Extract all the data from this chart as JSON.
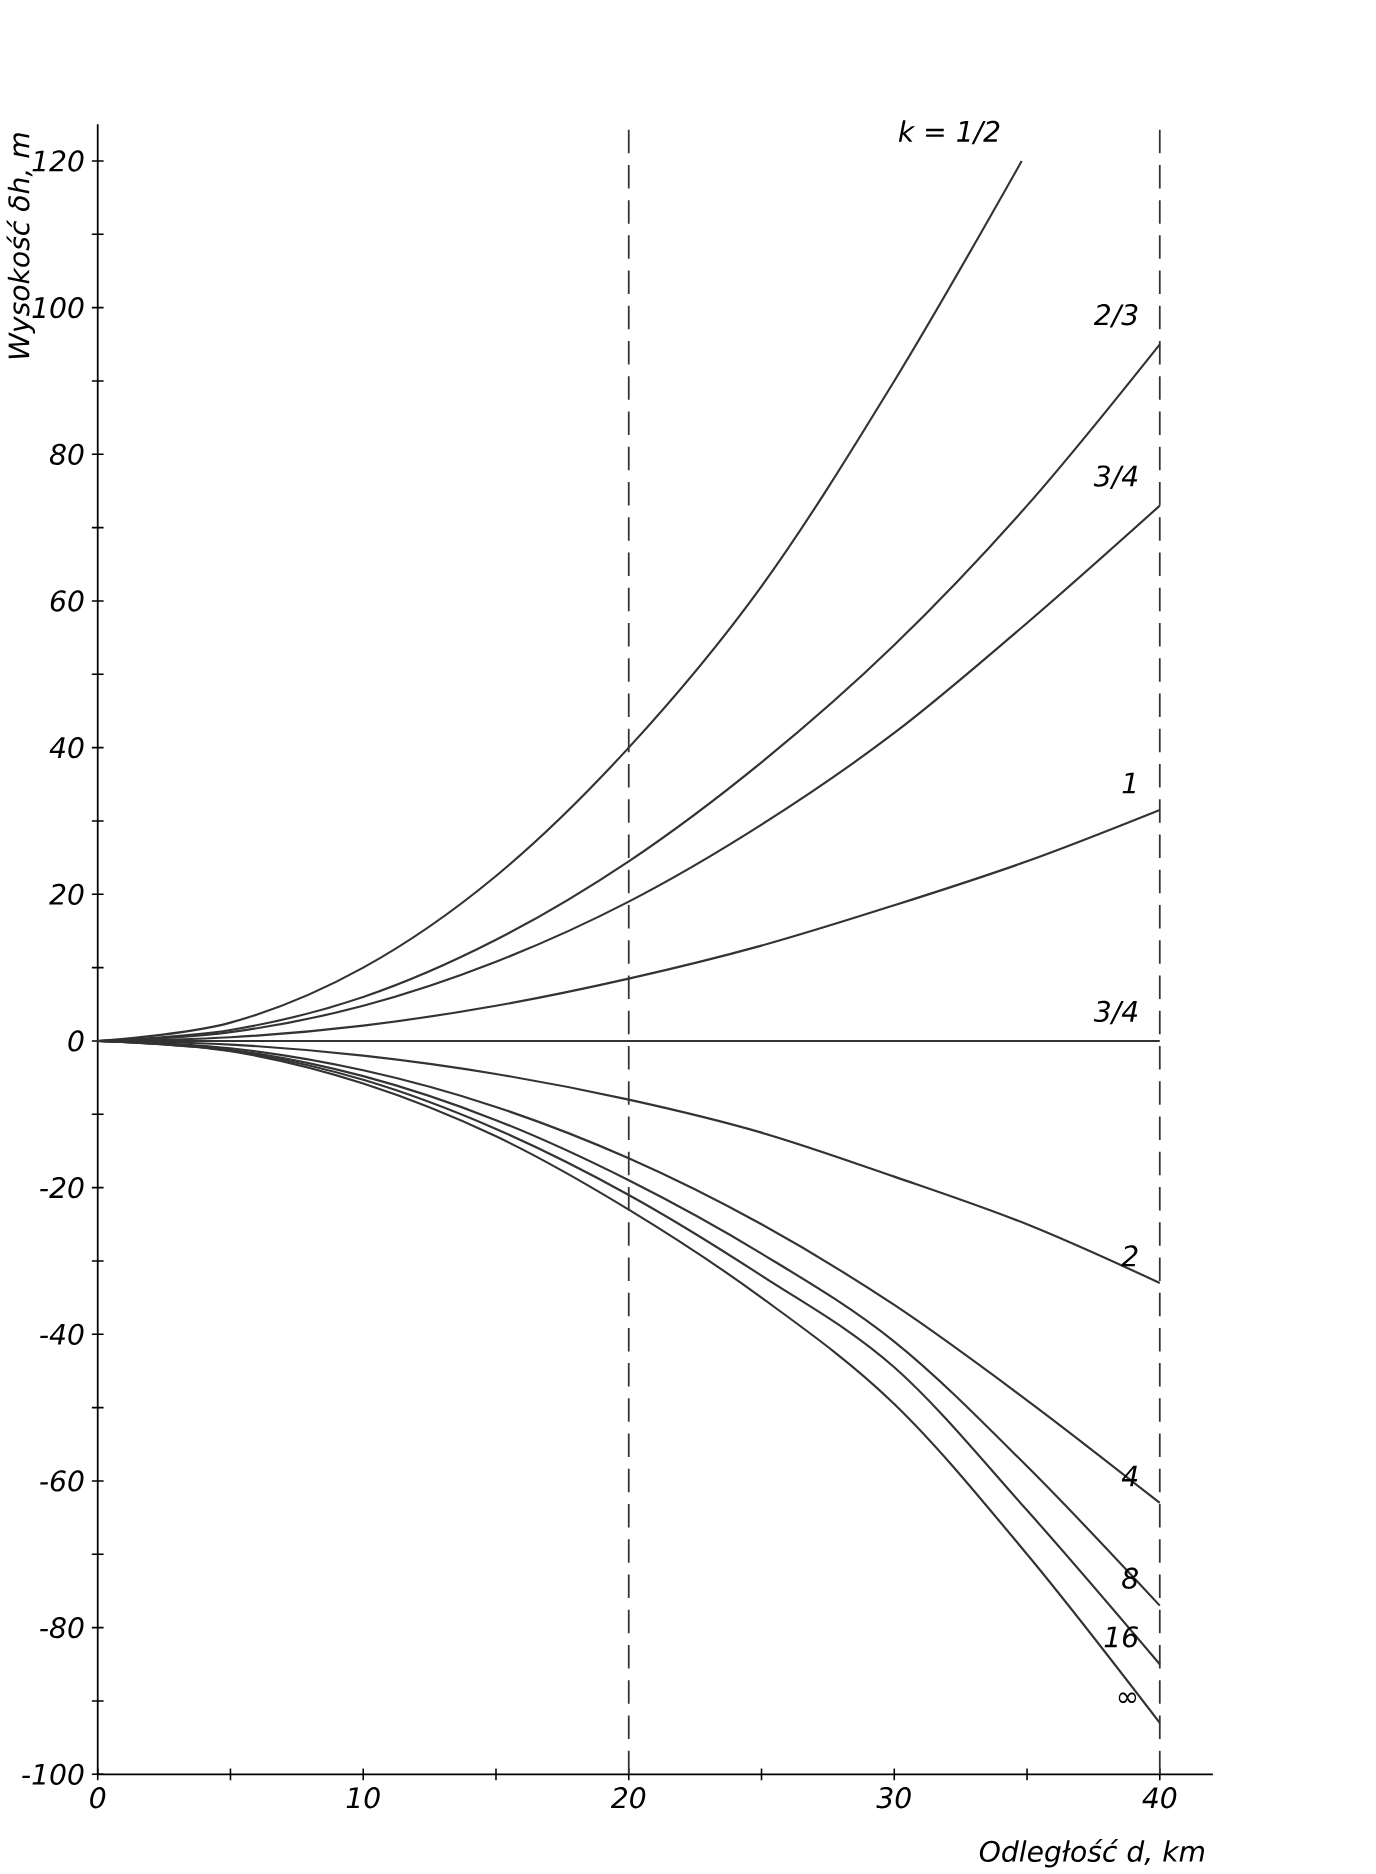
{
  "chart_data": {
    "type": "line",
    "xlabel": "Odległość d, km",
    "ylabel": "Wysokość δh, m",
    "xlim": [
      0,
      42
    ],
    "ylim": [
      -100,
      125
    ],
    "xticks": [
      0,
      {
        "value": 5,
        "label": null
      },
      10,
      {
        "value": 15,
        "label": null
      },
      20,
      {
        "value": 25,
        "label": null
      },
      30,
      {
        "value": 35,
        "label": null
      },
      40
    ],
    "yticks": [
      -100,
      {
        "value": -90,
        "label": null
      },
      -80,
      {
        "value": -70,
        "label": null
      },
      -60,
      {
        "value": -50,
        "label": null
      },
      -40,
      {
        "value": -30,
        "label": null
      },
      -20,
      {
        "value": -10,
        "label": null
      },
      0,
      {
        "value": 10,
        "label": null
      },
      20,
      {
        "value": 30,
        "label": null
      },
      40,
      {
        "value": 50,
        "label": null
      },
      60,
      {
        "value": 70,
        "label": null
      },
      80,
      {
        "value": 90,
        "label": null
      },
      100,
      {
        "value": 110,
        "label": null
      },
      120
    ],
    "grid": false,
    "marker": "none",
    "line_style": "solid",
    "ref_lines": [
      {
        "axis": "x",
        "value": 20,
        "line_style": "dashed",
        "color": "#333333"
      },
      {
        "axis": "x",
        "value": 40,
        "line_style": "dashed",
        "color": "#333333"
      }
    ],
    "series": [
      {
        "name": "k = 1/2",
        "color": "#333333",
        "x": [
          0,
          5,
          10,
          15,
          20,
          25,
          30,
          34.8
        ],
        "values": [
          0,
          2.5,
          10,
          22.5,
          40,
          62,
          90,
          120
        ]
      },
      {
        "name": "2/3",
        "color": "#333333",
        "x": [
          0,
          5,
          10,
          15,
          20,
          25,
          30,
          35,
          40
        ],
        "values": [
          0,
          1.5,
          6,
          13.8,
          24.5,
          38,
          54,
          73,
          95
        ]
      },
      {
        "name": "3/4",
        "color": "#333333",
        "x": [
          0,
          5,
          10,
          15,
          20,
          25,
          30,
          35,
          40
        ],
        "values": [
          0,
          1.2,
          4.8,
          10.8,
          19,
          29.5,
          42,
          57,
          73
        ]
      },
      {
        "name": "1",
        "color": "#333333",
        "x": [
          0,
          5,
          10,
          15,
          20,
          25,
          30,
          35,
          40
        ],
        "values": [
          0,
          0.5,
          2.1,
          4.8,
          8.5,
          13,
          18.5,
          24.5,
          31.5
        ]
      },
      {
        "name": "3/4",
        "color": "#333333",
        "x": [
          0,
          40
        ],
        "values": [
          0,
          0
        ]
      },
      {
        "name": "2",
        "color": "#333333",
        "x": [
          0,
          5,
          10,
          15,
          20,
          25,
          30,
          35,
          40
        ],
        "values": [
          0,
          -0.5,
          -2,
          -4.5,
          -8,
          -12.5,
          -18.5,
          -25,
          -33
        ]
      },
      {
        "name": "4",
        "color": "#333333",
        "x": [
          0,
          5,
          10,
          15,
          20,
          25,
          30,
          35,
          40
        ],
        "values": [
          0,
          -1,
          -4,
          -9,
          -16,
          -25,
          -36,
          -49,
          -63
        ]
      },
      {
        "name": "8",
        "color": "#333333",
        "x": [
          0,
          5,
          10,
          15,
          20,
          25,
          30,
          35,
          40
        ],
        "values": [
          0,
          -1.2,
          -4.8,
          -10.8,
          -19,
          -29,
          -41,
          -58,
          -77
        ]
      },
      {
        "name": "16",
        "color": "#333333",
        "x": [
          0,
          5,
          10,
          15,
          20,
          25,
          30,
          35,
          40
        ],
        "values": [
          0,
          -1.3,
          -5.3,
          -12,
          -21,
          -32,
          -44.5,
          -64,
          -85
        ]
      },
      {
        "name": "∞",
        "color": "#333333",
        "x": [
          0,
          5,
          10,
          15,
          20,
          25,
          30,
          35,
          40
        ],
        "values": [
          0,
          -1.4,
          -5.8,
          -13,
          -23,
          -35,
          -49.5,
          -70,
          -93
        ]
      }
    ]
  }
}
